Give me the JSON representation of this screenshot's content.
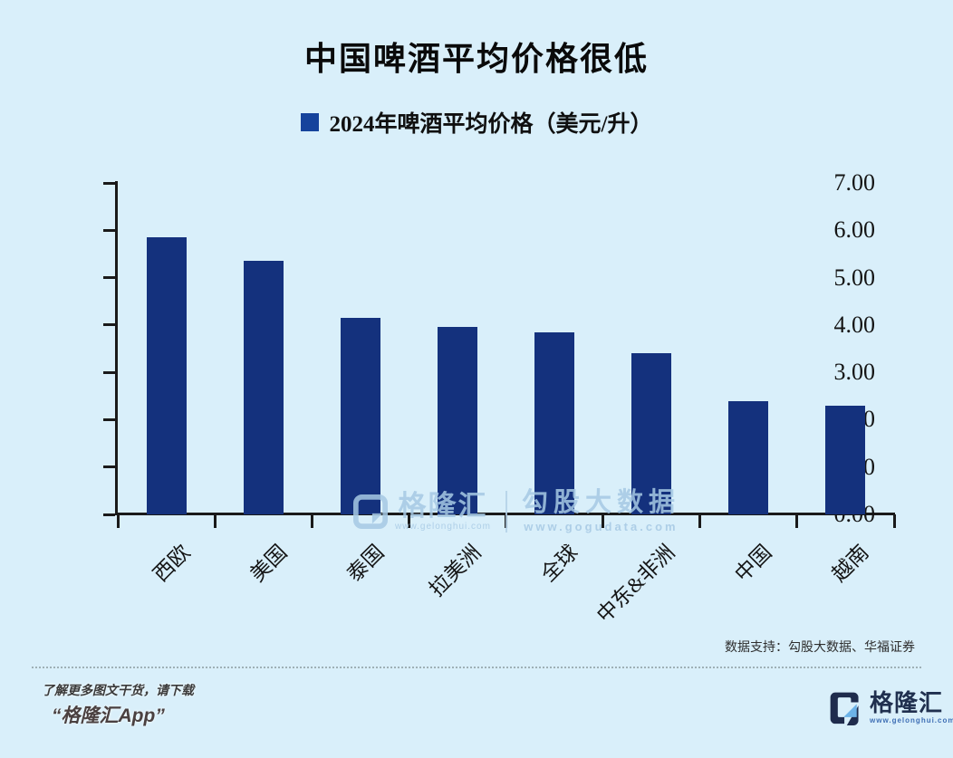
{
  "title": "中国啤酒平均价格很低",
  "legend": {
    "label": "2024年啤酒平均价格（美元/升）"
  },
  "chart_data": {
    "type": "bar",
    "title": "中国啤酒平均价格很低",
    "legend": "2024年啤酒平均价格（美元/升）",
    "categories": [
      "西欧",
      "美国",
      "泰国",
      "拉美洲",
      "全球",
      "中东&非洲",
      "中国",
      "越南"
    ],
    "values": [
      5.85,
      5.35,
      4.15,
      3.95,
      3.85,
      3.4,
      2.4,
      2.3
    ],
    "xlabel": "",
    "ylabel": "",
    "ylim": [
      0,
      7
    ],
    "ytick_step": 1,
    "yticks_labels": [
      "7.00",
      "6.00",
      "5.00",
      "4.00",
      "3.00",
      "2.00",
      "1.00",
      "0.00"
    ],
    "grid": false,
    "legend_position": "top",
    "bar_color": "#14317d"
  },
  "watermark": {
    "gelonghui_logo": "G",
    "gelonghui_text": "格隆汇",
    "gelonghui_url": "www.gelonghui.com",
    "gogudata_text": "勾股大数据",
    "gogudata_url": "www.gogudata.com"
  },
  "source_note": "数据支持：勾股大数据、华福证券",
  "footer": {
    "line1": "了解更多图文干货，请下载",
    "line2": "“格隆汇App”",
    "logo_letter": "G",
    "logo_text": "格隆汇",
    "logo_url": "www.gelonghui.com"
  },
  "colors": {
    "background": "#d9effa",
    "bar": "#14317d",
    "legend_swatch": "#15439c",
    "axis": "#1a1a1a",
    "watermark": "#a6c9e4"
  }
}
